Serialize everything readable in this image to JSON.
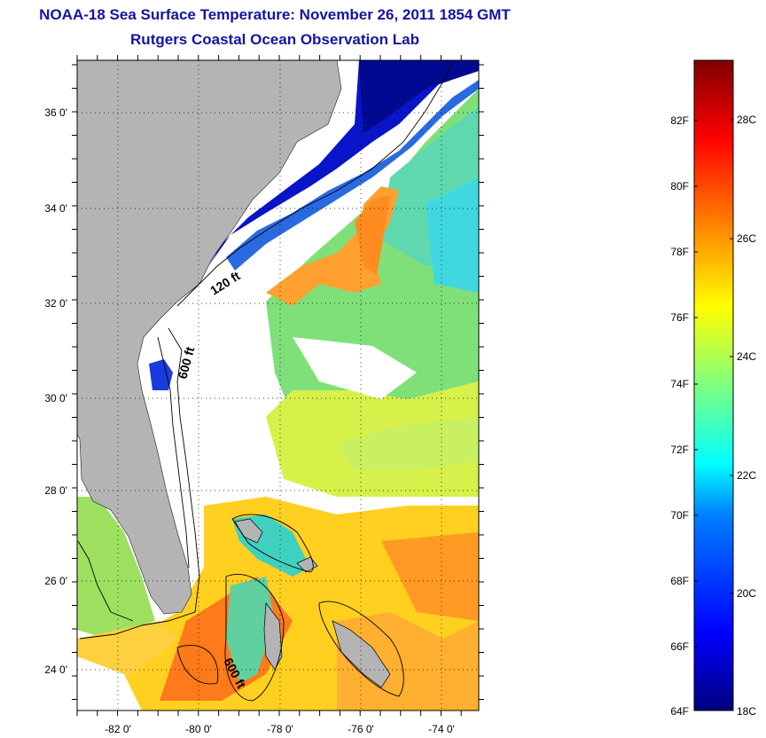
{
  "title_line1": "NOAA-18 Sea Surface Temperature:  November 26, 2011 1854 GMT",
  "title_line2": "Rutgers Coastal Ocean Observation Lab",
  "lat_ticks": [
    "36 0'",
    "34 0'",
    "32 0'",
    "30 0'",
    "28 0'",
    "26 0'",
    "24 0'"
  ],
  "lon_ticks": [
    "-82 0'",
    "-80 0'",
    "-78 0'",
    "-76 0'",
    "-74 0'"
  ],
  "contour_labels": [
    "120 ft",
    "600 ft",
    "600 ft"
  ],
  "colorbar": {
    "f_labels": [
      "82F",
      "80F",
      "78F",
      "76F",
      "74F",
      "72F",
      "70F",
      "68F",
      "66F",
      "64F"
    ],
    "c_labels": [
      "28C",
      "26C",
      "24C",
      "22C",
      "20C",
      "18C"
    ]
  },
  "colors": {
    "land": "#b4b4b4",
    "title": "#1414a0",
    "cold": "#00007f",
    "warm": "#ff6a00"
  }
}
